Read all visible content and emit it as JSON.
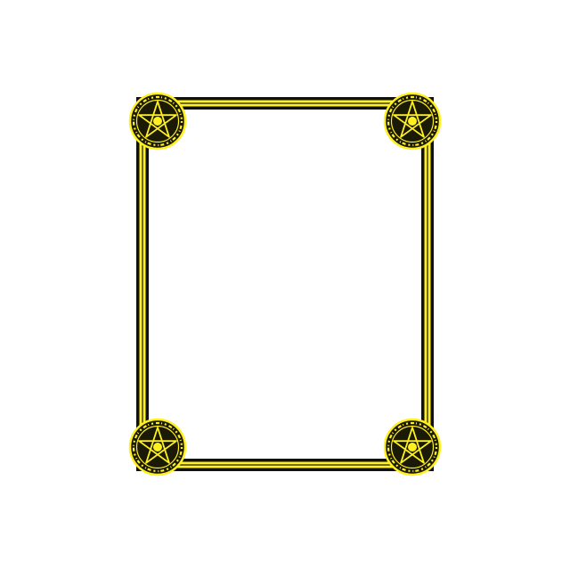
{
  "frame": {
    "colors": {
      "background": "#ffffff",
      "outline": "#111111",
      "accent": "#fff01f",
      "medallion_fill": "#1a1a06"
    },
    "corners": [
      "top-left",
      "top-right",
      "bottom-left",
      "bottom-right"
    ],
    "corner_icon": "pentagram-seal-icon"
  }
}
